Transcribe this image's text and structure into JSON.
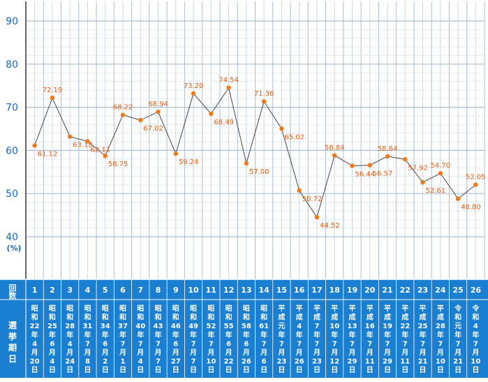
{
  "chart_data": {
    "type": "line",
    "title": "",
    "ylabel": "(%)",
    "ylim": [
      40,
      90
    ],
    "yticks": [
      40,
      50,
      60,
      70,
      80,
      90
    ],
    "grid": true,
    "header_left": {
      "top": "回",
      "bottom": "数"
    },
    "date_header": {
      "top": "選",
      "middle": "挙",
      "mid2": "期",
      "bottom": "日"
    },
    "categories": [
      "1",
      "2",
      "3",
      "4",
      "5",
      "6",
      "7",
      "8",
      "9",
      "10",
      "11",
      "12",
      "13",
      "14",
      "15",
      "16",
      "17",
      "18",
      "19",
      "20",
      "21",
      "22",
      "23",
      "24",
      "25",
      "26"
    ],
    "dates": [
      [
        "昭",
        "和",
        "22",
        "年",
        "4",
        "月",
        "20",
        "日"
      ],
      [
        "昭",
        "和",
        "25",
        "年",
        "6",
        "月",
        "4",
        "日"
      ],
      [
        "昭",
        "和",
        "28",
        "年",
        "4",
        "月",
        "24",
        "日"
      ],
      [
        "昭",
        "和",
        "31",
        "年",
        "7",
        "月",
        "8",
        "日"
      ],
      [
        "昭",
        "和",
        "34",
        "年",
        "6",
        "月",
        "2",
        "日"
      ],
      [
        "昭",
        "和",
        "37",
        "年",
        "7",
        "月",
        "1",
        "日"
      ],
      [
        "昭",
        "和",
        "40",
        "年",
        "7",
        "月",
        "4",
        "日"
      ],
      [
        "昭",
        "和",
        "43",
        "年",
        "7",
        "月",
        "7",
        "日"
      ],
      [
        "昭",
        "和",
        "46",
        "年",
        "6",
        "月",
        "27",
        "日"
      ],
      [
        "昭",
        "和",
        "49",
        "年",
        "7",
        "月",
        "7",
        "日"
      ],
      [
        "昭",
        "和",
        "52",
        "年",
        "7",
        "月",
        "10",
        "日"
      ],
      [
        "昭",
        "和",
        "55",
        "年",
        "6",
        "月",
        "22",
        "日"
      ],
      [
        "昭",
        "和",
        "58",
        "年",
        "6",
        "月",
        "26",
        "日"
      ],
      [
        "昭",
        "和",
        "61",
        "年",
        "7",
        "月",
        "6",
        "日"
      ],
      [
        "平",
        "成",
        "元",
        "年",
        "7",
        "月",
        "23",
        "日"
      ],
      [
        "平",
        "成",
        "4",
        "年",
        "7",
        "月",
        "26",
        "日"
      ],
      [
        "平",
        "成",
        "7",
        "年",
        "7",
        "月",
        "23",
        "日"
      ],
      [
        "平",
        "成",
        "10",
        "年",
        "7",
        "月",
        "12",
        "日"
      ],
      [
        "平",
        "成",
        "13",
        "年",
        "7",
        "月",
        "29",
        "日"
      ],
      [
        "平",
        "成",
        "16",
        "年",
        "7",
        "月",
        "11",
        "日"
      ],
      [
        "平",
        "成",
        "19",
        "年",
        "7",
        "月",
        "29",
        "日"
      ],
      [
        "平",
        "成",
        "22",
        "年",
        "7",
        "月",
        "11",
        "日"
      ],
      [
        "平",
        "成",
        "25",
        "年",
        "7",
        "月",
        "21",
        "日"
      ],
      [
        "平",
        "成",
        "28",
        "年",
        "7",
        "月",
        "10",
        "日"
      ],
      [
        "令",
        "和",
        "元",
        "年",
        "7",
        "月",
        "21",
        "日"
      ],
      [
        "令",
        "和",
        "4",
        "年",
        "7",
        "月",
        "10",
        "日"
      ]
    ],
    "series": [
      {
        "values": [
          61.12,
          72.19,
          63.18,
          62.11,
          58.75,
          68.22,
          67.02,
          68.94,
          59.24,
          73.2,
          68.49,
          74.54,
          57.0,
          71.36,
          65.02,
          50.72,
          44.52,
          58.84,
          56.44,
          56.57,
          58.64,
          57.92,
          52.61,
          54.7,
          48.8,
          52.05
        ],
        "labels": [
          "61.12",
          "72.19",
          "63.18",
          "62.11",
          "58.75",
          "68.22",
          "67.02",
          "68.94",
          "59.24",
          "73.20",
          "68.49",
          "74.54",
          "57.00",
          "71.36",
          "65.02",
          "50.72",
          "44.52",
          "58.84",
          "56.44",
          "56.57",
          "58.64",
          "57.92",
          "52.61",
          "54.70",
          "48.80",
          "52.05"
        ]
      }
    ],
    "colors": {
      "line": "#444444",
      "marker": "#ee7a1c",
      "label": "#ee5a0a",
      "tick": "#1565c8",
      "grid_major": "#a8bdd8",
      "grid_minor": "#c8d6e8",
      "axis": "#333333",
      "table_bg": "#1a7fd0",
      "table_text": "#ffffff",
      "table_line": "#ffffff"
    }
  }
}
